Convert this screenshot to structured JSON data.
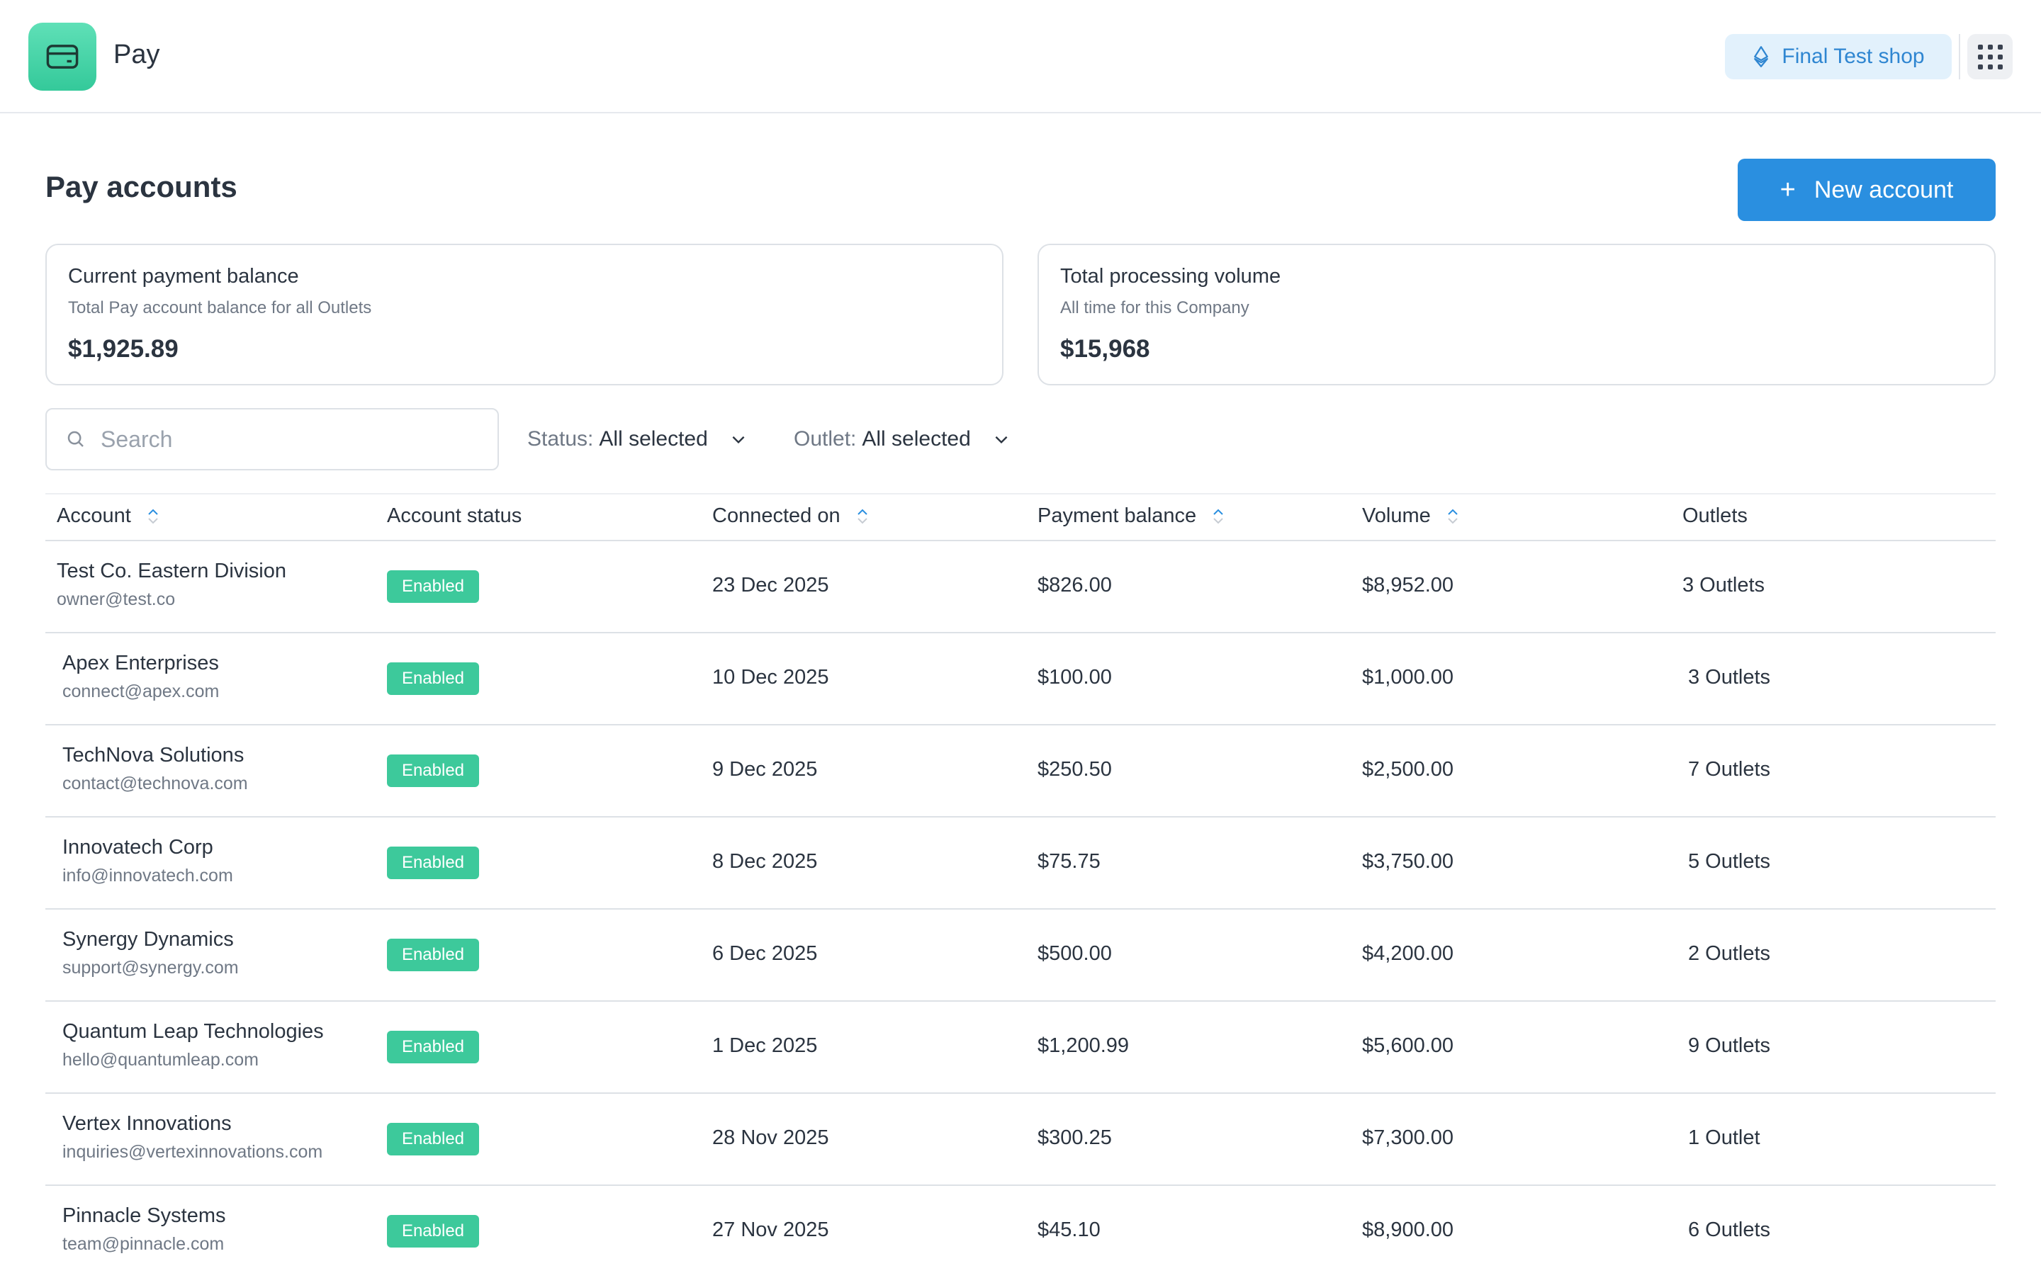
{
  "app": {
    "name": "Pay",
    "logo_icon": "card-icon",
    "accent": "#3dc99b"
  },
  "header": {
    "shop_label": "Final Test shop",
    "shop_icon": "ethereum-icon",
    "apps_icon": "grid-icon"
  },
  "page": {
    "title": "Pay accounts",
    "new_button_label": "New account",
    "new_button_color": "#2a8fe0"
  },
  "cards": [
    {
      "title": "Current payment balance",
      "subtitle": "Total Pay account balance for all Outlets",
      "value": "$1,925.89"
    },
    {
      "title": "Total processing volume",
      "subtitle": "All time for this Company",
      "value": "$15,968"
    }
  ],
  "filters": {
    "search_placeholder": "Search",
    "status_label": "Status:",
    "status_value": "All selected",
    "outlet_label": "Outlet:",
    "outlet_value": "All selected"
  },
  "table": {
    "columns": [
      "Account",
      "Account status",
      "Connected on",
      "Payment balance",
      "Volume",
      "Outlets"
    ],
    "rows": [
      {
        "name": "Test Co. Eastern Division",
        "email": "owner@test.co",
        "status": "Enabled",
        "connected": "23 Dec 2025",
        "balance": "$826.00",
        "volume": "$8,952.00",
        "outlets": "3 Outlets"
      },
      {
        "name": "Apex Enterprises",
        "email": "connect@apex.com",
        "status": "Enabled",
        "connected": "10 Dec 2025",
        "balance": "$100.00",
        "volume": "$1,000.00",
        "outlets": "3 Outlets"
      },
      {
        "name": "TechNova Solutions",
        "email": "contact@technova.com",
        "status": "Enabled",
        "connected": "9 Dec 2025",
        "balance": "$250.50",
        "volume": "$2,500.00",
        "outlets": "7 Outlets"
      },
      {
        "name": "Innovatech Corp",
        "email": "info@innovatech.com",
        "status": "Enabled",
        "connected": "8 Dec 2025",
        "balance": "$75.75",
        "volume": "$3,750.00",
        "outlets": "5 Outlets"
      },
      {
        "name": "Synergy Dynamics",
        "email": "support@synergy.com",
        "status": "Enabled",
        "connected": "6 Dec 2025",
        "balance": "$500.00",
        "volume": "$4,200.00",
        "outlets": "2 Outlets"
      },
      {
        "name": "Quantum Leap Technologies",
        "email": "hello@quantumleap.com",
        "status": "Enabled",
        "connected": "1 Dec 2025",
        "balance": "$1,200.99",
        "volume": "$5,600.00",
        "outlets": "9 Outlets"
      },
      {
        "name": "Vertex Innovations",
        "email": "inquiries@vertexinnovations.com",
        "status": "Enabled",
        "connected": "28 Nov 2025",
        "balance": "$300.25",
        "volume": "$7,300.00",
        "outlets": "1 Outlet"
      },
      {
        "name": "Pinnacle Systems",
        "email": "team@pinnacle.com",
        "status": "Enabled",
        "connected": "27 Nov 2025",
        "balance": "$45.10",
        "volume": "$8,900.00",
        "outlets": "6 Outlets"
      }
    ]
  }
}
